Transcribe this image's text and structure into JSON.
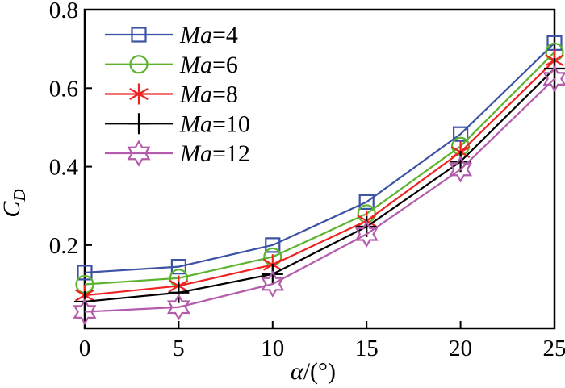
{
  "figure": {
    "background": "#ffffff",
    "axis_color": "#000000"
  },
  "chart_data": {
    "type": "line",
    "title": "",
    "xlabel": "α/(°)",
    "xlabel_italic": "α",
    "xlabel_rest": "/(°)",
    "ylabel": "CD",
    "ylabel_main": "C",
    "ylabel_sub": "D",
    "xlim": [
      0,
      25
    ],
    "ylim": [
      0,
      0.8
    ],
    "grid": false,
    "legend_position": "top-left-inside",
    "x": [
      0,
      5,
      10,
      15,
      20,
      25
    ],
    "x_tick_labels": [
      "0",
      "5",
      "10",
      "15",
      "20",
      "25"
    ],
    "y_ticks": [
      0.2,
      0.4,
      0.6,
      0.8
    ],
    "y_tick_labels": [
      "0.2",
      "0.4",
      "0.6",
      "0.8"
    ],
    "series": [
      {
        "name": "Ma=4",
        "label_italic": "Ma",
        "label_rest": "=4",
        "marker": "open-square",
        "color": "#3C52A4",
        "values": [
          0.13,
          0.145,
          0.2,
          0.31,
          0.483,
          0.715
        ]
      },
      {
        "name": "Ma=6",
        "label_italic": "Ma",
        "label_rest": "=6",
        "marker": "open-circle",
        "color": "#5CB32D",
        "values": [
          0.1,
          0.116,
          0.17,
          0.28,
          0.452,
          0.692
        ]
      },
      {
        "name": "Ma=8",
        "label_italic": "Ma",
        "label_rest": "=8",
        "marker": "asterisk",
        "color": "#EF2322",
        "values": [
          0.072,
          0.096,
          0.15,
          0.262,
          0.437,
          0.671
        ]
      },
      {
        "name": "Ma=10",
        "label_italic": "Ma",
        "label_rest": "=10",
        "marker": "plus",
        "color": "#000000",
        "values": [
          0.056,
          0.079,
          0.126,
          0.247,
          0.413,
          0.65
        ]
      },
      {
        "name": "Ma=12",
        "label_italic": "Ma",
        "label_rest": "=12",
        "marker": "open-star6",
        "color": "#B45BAC",
        "values": [
          0.03,
          0.042,
          0.101,
          0.228,
          0.393,
          0.624
        ]
      }
    ]
  }
}
